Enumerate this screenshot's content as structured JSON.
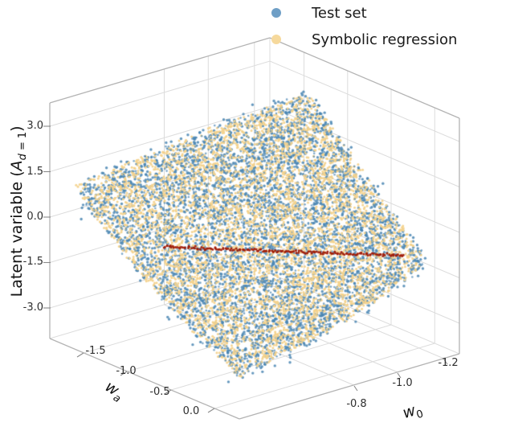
{
  "legend": {
    "items": [
      {
        "label": "Test set",
        "color": "#6f9fc6"
      },
      {
        "label": "Symbolic regression",
        "color": "#f6d99c"
      }
    ]
  },
  "axes": {
    "z": {
      "label_prefix": "Latent variable (",
      "label_var": "A",
      "label_sub_var": "d",
      "label_sub_rest": " = 1",
      "label_suffix": ")",
      "ticks": [
        "3.0",
        "1.5",
        "0.0",
        "-1.5",
        "-3.0"
      ]
    },
    "wa": {
      "label_var": "w",
      "label_sub": "a",
      "ticks": [
        "-1.5",
        "-1.0",
        "-0.5",
        "0.0"
      ]
    },
    "w0": {
      "label_var": "w",
      "label_sub": "0",
      "ticks": [
        "-1.2",
        "-1.0",
        "-0.8"
      ]
    }
  },
  "chart_data": {
    "type": "scatter",
    "projection": "3d",
    "title": "",
    "x_axis": {
      "label": "w_a",
      "tick_values": [
        -1.5,
        -1.0,
        -0.5,
        0.0
      ],
      "range": [
        0.1,
        -1.8
      ]
    },
    "y_axis": {
      "label": "w_0",
      "tick_values": [
        -1.2,
        -1.0,
        -0.8
      ],
      "range": [
        -0.72,
        -1.32
      ]
    },
    "z_axis": {
      "label": "Latent variable (A_d=1)",
      "tick_values": [
        3.0,
        1.5,
        0.0,
        -1.5,
        -3.0
      ],
      "range": [
        -3.8,
        3.8
      ]
    },
    "legend_position": "upper right",
    "grid": true,
    "series": [
      {
        "name": "Test set",
        "marker_color": "#4a86b3",
        "description": "dense cloud of noisy test points scattered vertically around a tilted curved surface over the (w_a, w_0) plane"
      },
      {
        "name": "Symbolic regression",
        "marker_color": "#f3d28c",
        "description": "dense points forming the fitted smooth surface; latent variable decreases smoothly with w_a and w_0"
      }
    ],
    "annotations": [
      {
        "type": "line",
        "color": "#a51b07",
        "description": "dark red trajectory drawn across the middle of the surface at roughly constant latent value ~ -0.5"
      }
    ],
    "render": {
      "seed": 42,
      "layers": [
        {
          "name": "test-set-under",
          "n": 4200,
          "sigma": 4.5,
          "heavy": 0.1,
          "heavy_mult": 3.2,
          "r": 1.7,
          "color": "rgba(74,134,179,0.85)"
        },
        {
          "name": "surface",
          "n": 5200,
          "sigma": 1.4,
          "heavy": 0.02,
          "heavy_mult": 3.0,
          "r": 1.5,
          "color": "rgba(243,210,140,0.95)"
        },
        {
          "name": "test-set-over",
          "n": 1300,
          "sigma": 2.2,
          "heavy": 0.05,
          "heavy_mult": 3.0,
          "r": 1.3,
          "color": "rgba(74,134,179,0.7)"
        }
      ],
      "red_line": {
        "n": 170,
        "r": 1.5,
        "jitter": 0.9,
        "color": "rgba(160,27,7,0.95)",
        "x1": 203,
        "y1": 307,
        "x2": 503,
        "y2": 318
      }
    }
  }
}
